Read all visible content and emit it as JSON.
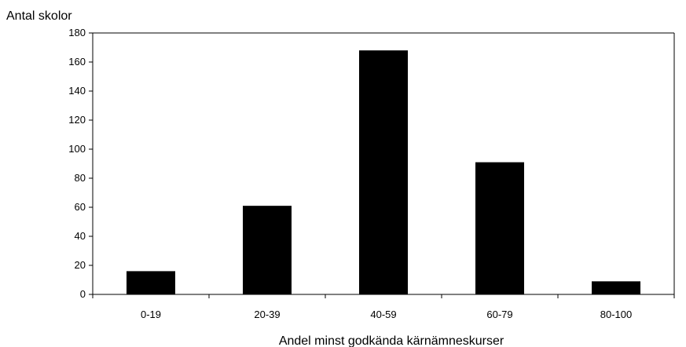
{
  "chart_data": {
    "type": "bar",
    "ylabel": "Antal skolor",
    "xlabel": "Andel minst godkända kärnämneskurser",
    "categories": [
      "0-19",
      "20-39",
      "40-59",
      "60-79",
      "80-100"
    ],
    "values": [
      16,
      61,
      168,
      91,
      9
    ],
    "ylim": [
      0,
      180
    ],
    "yticks": [
      0,
      20,
      40,
      60,
      80,
      100,
      120,
      140,
      160,
      180
    ],
    "grid": false,
    "legend": "none",
    "bar_color": "#000000"
  }
}
